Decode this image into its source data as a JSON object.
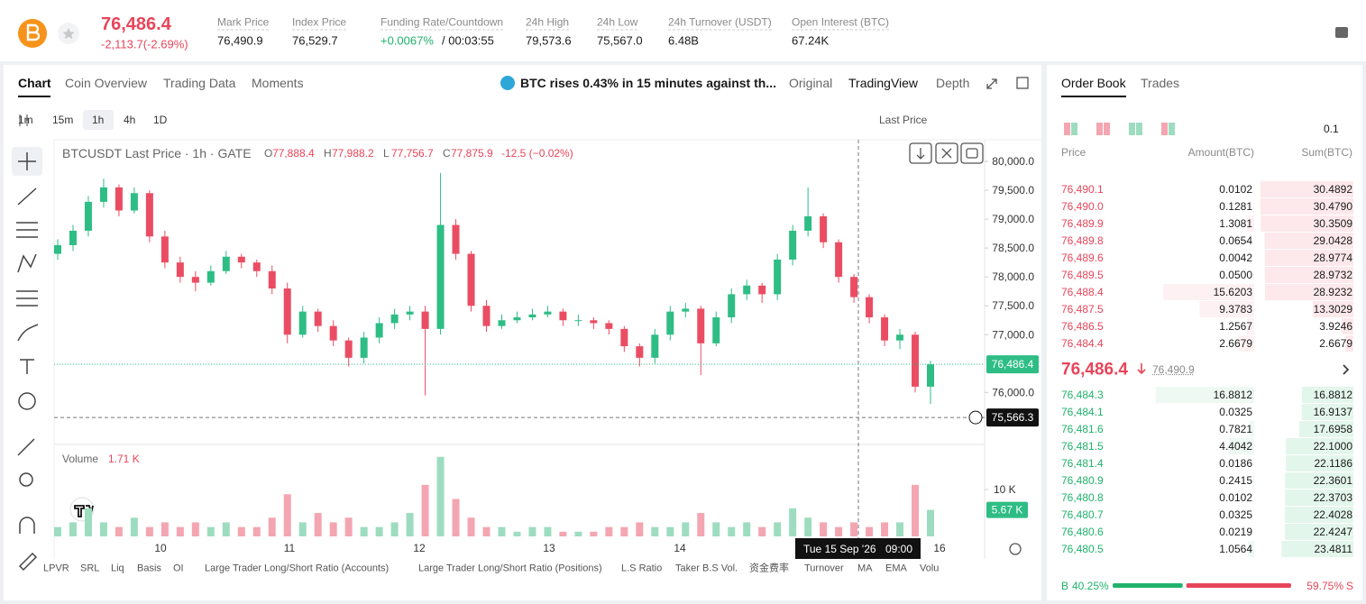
{
  "header": {
    "price": "76,486.4",
    "change": "-2,113.7(-2.69%)",
    "stats": [
      {
        "label": "Mark Price",
        "value": "76,490.9"
      },
      {
        "label": "Index Price",
        "value": "76,529.7"
      },
      {
        "label": "Funding Rate/Countdown",
        "value": "+0.0067%",
        "extra": "/ 00:03:55"
      },
      {
        "label": "24h High",
        "value": "79,573.6"
      },
      {
        "label": "24h Low",
        "value": "75,567.0"
      },
      {
        "label": "24h Turnover (USDT)",
        "value": "6.48B"
      },
      {
        "label": "Open Interest (BTC)",
        "value": "67.24K"
      }
    ]
  },
  "chart_tabs": [
    "Chart",
    "Coin Overview",
    "Trading Data",
    "Moments"
  ],
  "news": "BTC rises 0.43% in 15 minutes against th...",
  "view_tabs": [
    "Original",
    "TradingView",
    "Depth"
  ],
  "intervals": [
    "1m",
    "15m",
    "1h",
    "4h",
    "1D"
  ],
  "price_source": "Last Price",
  "chart_data": {
    "type": "candlestick",
    "title": "BTCUSDT Last Price · 1h · GATE",
    "ohlc_legend": [
      {
        "key": "O",
        "value": "77,888.4"
      },
      {
        "key": "H",
        "value": "77,988.2"
      },
      {
        "key": "L",
        "value": "77,756.7"
      },
      {
        "key": "C",
        "value": "77,875.9"
      }
    ],
    "change_legend": "-12.5 (−0.02%)",
    "up_color": "#2ebd85",
    "down_color": "#ea4d63",
    "open": [
      78400,
      78550,
      78800,
      79300,
      79550,
      79150,
      79450,
      78700,
      78250,
      78000,
      77900,
      78100,
      78350,
      78250,
      78100,
      77800,
      77000,
      77400,
      77150,
      76900,
      76600,
      76950,
      77200,
      77350,
      77400,
      77100,
      78900,
      78400,
      77500,
      77150,
      77250,
      77300,
      77350,
      77400,
      77250,
      77250,
      77200,
      77100,
      76800,
      76600,
      77000,
      77400,
      77450,
      76850,
      77300,
      77700,
      77850,
      77700,
      78300,
      78800,
      79050,
      78600,
      78000,
      77650,
      77300,
      76900,
      77000,
      76100
    ],
    "high": [
      78650,
      78900,
      79400,
      79700,
      79600,
      79550,
      79500,
      78800,
      78350,
      78100,
      78200,
      78450,
      78400,
      78300,
      78200,
      77900,
      77500,
      77450,
      77250,
      76950,
      77050,
      77300,
      77450,
      77500,
      77500,
      79800,
      79000,
      78450,
      77600,
      77350,
      77400,
      77450,
      77500,
      77450,
      77350,
      77300,
      77250,
      77150,
      76850,
      77100,
      77500,
      77550,
      77500,
      77400,
      77800,
      77950,
      77900,
      78400,
      78900,
      79550,
      79100,
      78650,
      78050,
      77700,
      77350,
      77100,
      77050,
      76550
    ],
    "low": [
      78300,
      78450,
      78700,
      79200,
      79050,
      79100,
      78600,
      78150,
      77900,
      77750,
      77850,
      78050,
      78150,
      78000,
      77700,
      76850,
      76950,
      77050,
      76800,
      76450,
      76500,
      76850,
      77100,
      77250,
      75950,
      77000,
      78300,
      77400,
      77050,
      77100,
      77200,
      77250,
      77300,
      77150,
      77150,
      77100,
      77000,
      76700,
      76450,
      76500,
      76900,
      77300,
      76300,
      76800,
      77200,
      77600,
      77550,
      77600,
      78200,
      78700,
      78500,
      77900,
      77550,
      77200,
      76800,
      76750,
      76000,
      75800
    ],
    "close": [
      78550,
      78800,
      79300,
      79550,
      79150,
      79450,
      78700,
      78250,
      78000,
      77900,
      78100,
      78350,
      78250,
      78100,
      77800,
      77000,
      77400,
      77150,
      76900,
      76600,
      76950,
      77200,
      77350,
      77400,
      77100,
      78900,
      78400,
      77500,
      77150,
      77250,
      77300,
      77350,
      77400,
      77250,
      77250,
      77200,
      77100,
      76800,
      76600,
      77000,
      77400,
      77450,
      76850,
      77300,
      77700,
      77850,
      77700,
      78300,
      78800,
      79050,
      78600,
      78000,
      77650,
      77300,
      76900,
      77000,
      76100,
      76486.4
    ],
    "ylim": [
      75100,
      80375
    ],
    "yticks": [
      {
        "value": 80000,
        "label": "80,000.0"
      },
      {
        "value": 79500,
        "label": "79,500.0"
      },
      {
        "value": 79000,
        "label": "79,000.0"
      },
      {
        "value": 78500,
        "label": "78,500.0"
      },
      {
        "value": 78000,
        "label": "78,000.0"
      },
      {
        "value": 77500,
        "label": "77,500.0"
      },
      {
        "value": 77000,
        "label": "77,000.0"
      },
      {
        "value": 76000,
        "label": "76,000.0"
      }
    ],
    "last_price": {
      "value": 76486.4,
      "label": "76,486.4"
    },
    "crosshair_price": {
      "value": 75566.3,
      "label": "75,566.3"
    },
    "crosshair_time": [
      "Tue 15 Sep '26",
      "09:00"
    ],
    "x_labels": [
      "10",
      "11",
      "12",
      "13",
      "14",
      "16"
    ],
    "volume_title": "Volume",
    "volume_hover": "1.71 K",
    "volume": [
      2,
      3,
      6,
      3,
      2,
      4,
      2,
      3,
      2,
      3,
      2,
      3,
      2,
      2,
      4,
      9,
      3,
      5,
      3,
      4,
      2,
      2,
      3,
      5,
      11,
      17,
      8,
      4,
      2,
      2,
      1,
      2,
      2,
      1,
      1,
      1,
      2,
      2,
      3,
      2,
      2,
      3,
      5,
      3,
      2,
      3,
      2,
      3,
      6,
      4,
      3,
      2,
      3,
      2,
      3,
      3,
      11,
      5.67
    ],
    "volume_ylim": [
      0,
      18.3
    ],
    "volume_yticks": [
      {
        "value": 10,
        "label": "10 K"
      }
    ],
    "current_volume": {
      "value": 5.67,
      "label": "5.67 K"
    }
  },
  "indicators": [
    "LPVR",
    "SRL",
    "Liq",
    "Basis",
    "OI",
    "Large Trader Long/Short Ratio (Accounts)",
    "Large Trader Long/Short Ratio (Positions)",
    "L.S Ratio",
    "Taker B.S Vol.",
    "资金费率",
    "Turnover",
    "MA",
    "EMA",
    "Volu"
  ],
  "order_book": {
    "tabs": [
      "Order Book",
      "Trades"
    ],
    "step": "0.1",
    "headers": [
      "Price",
      "Amount(BTC)",
      "Sum(BTC)"
    ],
    "asks": [
      [
        "76,490.1",
        "0.0102",
        "30.4892"
      ],
      [
        "76,490.0",
        "0.1281",
        "30.4790"
      ],
      [
        "76,489.9",
        "1.3081",
        "30.3509"
      ],
      [
        "76,489.8",
        "0.0654",
        "29.0428"
      ],
      [
        "76,489.6",
        "0.0042",
        "28.9774"
      ],
      [
        "76,489.5",
        "0.0500",
        "28.9732"
      ],
      [
        "76,488.4",
        "15.6203",
        "28.9232"
      ],
      [
        "76,487.5",
        "9.3783",
        "13.3029"
      ],
      [
        "76,486.5",
        "1.2567",
        "3.9246"
      ],
      [
        "76,484.4",
        "2.6679",
        "2.6679"
      ]
    ],
    "mid_price": "76,486.4",
    "mark_price": "76,490.9",
    "bids": [
      [
        "76,484.3",
        "16.8812",
        "16.8812"
      ],
      [
        "76,484.1",
        "0.0325",
        "16.9137"
      ],
      [
        "76,481.6",
        "0.7821",
        "17.6958"
      ],
      [
        "76,481.5",
        "4.4042",
        "22.1000"
      ],
      [
        "76,481.4",
        "0.0186",
        "22.1186"
      ],
      [
        "76,480.9",
        "0.2415",
        "22.3601"
      ],
      [
        "76,480.8",
        "0.0102",
        "22.3703"
      ],
      [
        "76,480.7",
        "0.0325",
        "22.4028"
      ],
      [
        "76,480.6",
        "0.0219",
        "22.4247"
      ],
      [
        "76,480.5",
        "1.0564",
        "23.4811"
      ]
    ],
    "buy_label": "B",
    "buy": "40.25%",
    "sell": "59.75%",
    "sell_label": "S"
  }
}
